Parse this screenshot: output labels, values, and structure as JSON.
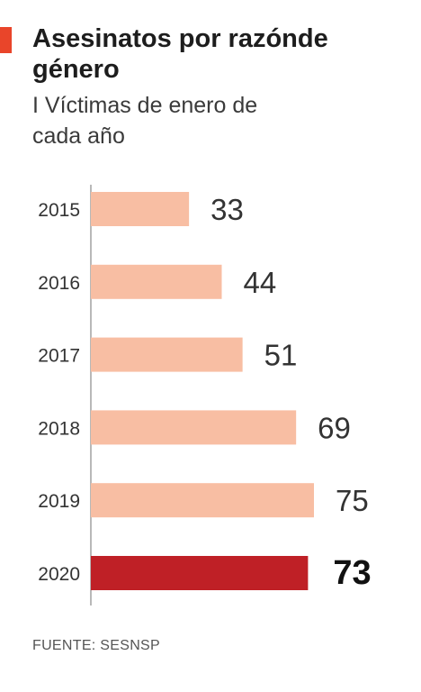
{
  "chart_data": {
    "type": "bar",
    "orientation": "horizontal",
    "title": "Asesinatos por razónde género",
    "subtitle": "I Víctimas de enero de cada año",
    "categories": [
      "2015",
      "2016",
      "2017",
      "2018",
      "2019",
      "2020"
    ],
    "values": [
      33,
      44,
      51,
      69,
      75,
      73
    ],
    "highlight_index": 5,
    "xlim": [
      0,
      75
    ],
    "grid": false,
    "legend": "none"
  },
  "source": "FUENTE: SESNSP",
  "colors": {
    "bar": "#f8bea3",
    "highlight": "#bf2026",
    "accent": "#e9452a",
    "axis": "#8a8a8a",
    "label": "#333333"
  }
}
